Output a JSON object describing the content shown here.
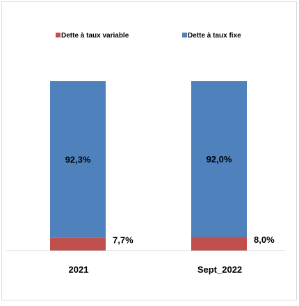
{
  "chart_data": {
    "type": "bar",
    "stacked": true,
    "percent_stacked": true,
    "categories": [
      "2021",
      "Sept_2022"
    ],
    "series": [
      {
        "name": "Dette à taux variable",
        "color": "#c0504d",
        "values": [
          7.7,
          8.0
        ],
        "labels": [
          "7,7%",
          "8,0%"
        ]
      },
      {
        "name": "Dette à taux fixe",
        "color": "#4f81bd",
        "values": [
          92.3,
          92.0
        ],
        "labels": [
          "92,3%",
          "92,0%"
        ]
      }
    ],
    "ylim": [
      0,
      100
    ],
    "grid": false,
    "legend_position": "top"
  }
}
